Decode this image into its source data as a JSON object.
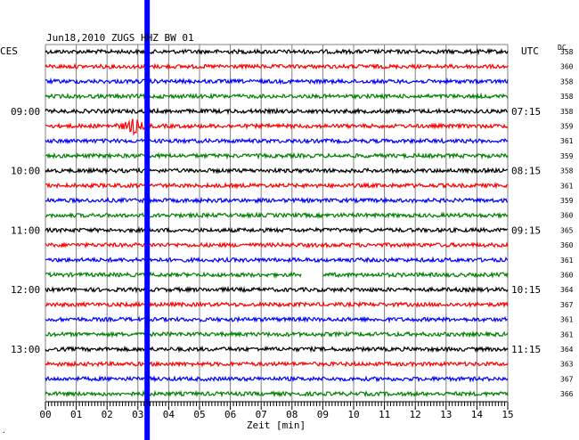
{
  "chart_data": {
    "type": "line",
    "title": "Jun18,2010   ZUGS HHZ BW 01",
    "left_timezone": "CES",
    "right_timezone": "UTC",
    "dc_label": "DC",
    "xlabel": "Zeit [min]",
    "x_ticks": [
      "00",
      "01",
      "02",
      "03",
      "04",
      "05",
      "06",
      "07",
      "08",
      "09",
      "10",
      "11",
      "12",
      "13",
      "14",
      "15"
    ],
    "xlim": [
      0,
      15
    ],
    "grid": true,
    "left_hour_labels": [
      {
        "row": 4,
        "label": "09:00"
      },
      {
        "row": 8,
        "label": "10:00"
      },
      {
        "row": 12,
        "label": "11:00"
      },
      {
        "row": 16,
        "label": "12:00"
      },
      {
        "row": 20,
        "label": "13:00"
      }
    ],
    "right_hour_labels": [
      {
        "row": 4,
        "label": "07:15"
      },
      {
        "row": 8,
        "label": "08:15"
      },
      {
        "row": 12,
        "label": "09:15"
      },
      {
        "row": 16,
        "label": "10:15"
      },
      {
        "row": 20,
        "label": "11:15"
      }
    ],
    "trace_colors": [
      "#000000",
      "#ff0000",
      "#0000ff",
      "#008000"
    ],
    "dc_offsets": [
      358,
      360,
      358,
      358,
      358,
      359,
      361,
      359,
      358,
      361,
      359,
      360,
      365,
      360,
      361,
      360,
      364,
      367,
      361,
      361,
      364,
      363,
      367,
      366
    ],
    "events": [
      {
        "row": 5,
        "x_min": 2.85,
        "amplitude": "large"
      }
    ],
    "data_gaps": [
      {
        "row": 15,
        "from_min": 8.3,
        "to_min": 9.0
      }
    ],
    "marker_line": {
      "x_min": 3.3,
      "color": "#0000ff"
    },
    "corner_mark": "."
  }
}
